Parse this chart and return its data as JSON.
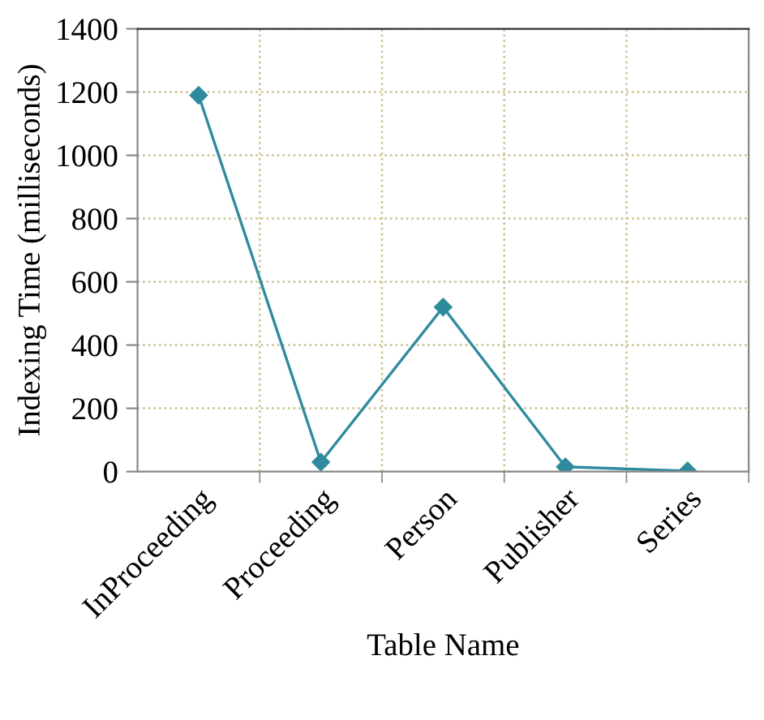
{
  "chart_data": {
    "type": "line",
    "xlabel": "Table Name",
    "ylabel": "Indexing Time (milliseconds)",
    "categories": [
      "InProceeding",
      "Proceeding",
      "Person",
      "Publisher",
      "Series"
    ],
    "series": [
      {
        "color": "#2e8b9e",
        "values": [
          1190,
          30,
          520,
          15,
          2
        ]
      }
    ],
    "ylim": [
      0,
      1400
    ],
    "yticks": [
      0,
      200,
      400,
      600,
      800,
      1000,
      1200,
      1400
    ],
    "grid": true,
    "marker": "diamond",
    "line_style": "solid"
  }
}
